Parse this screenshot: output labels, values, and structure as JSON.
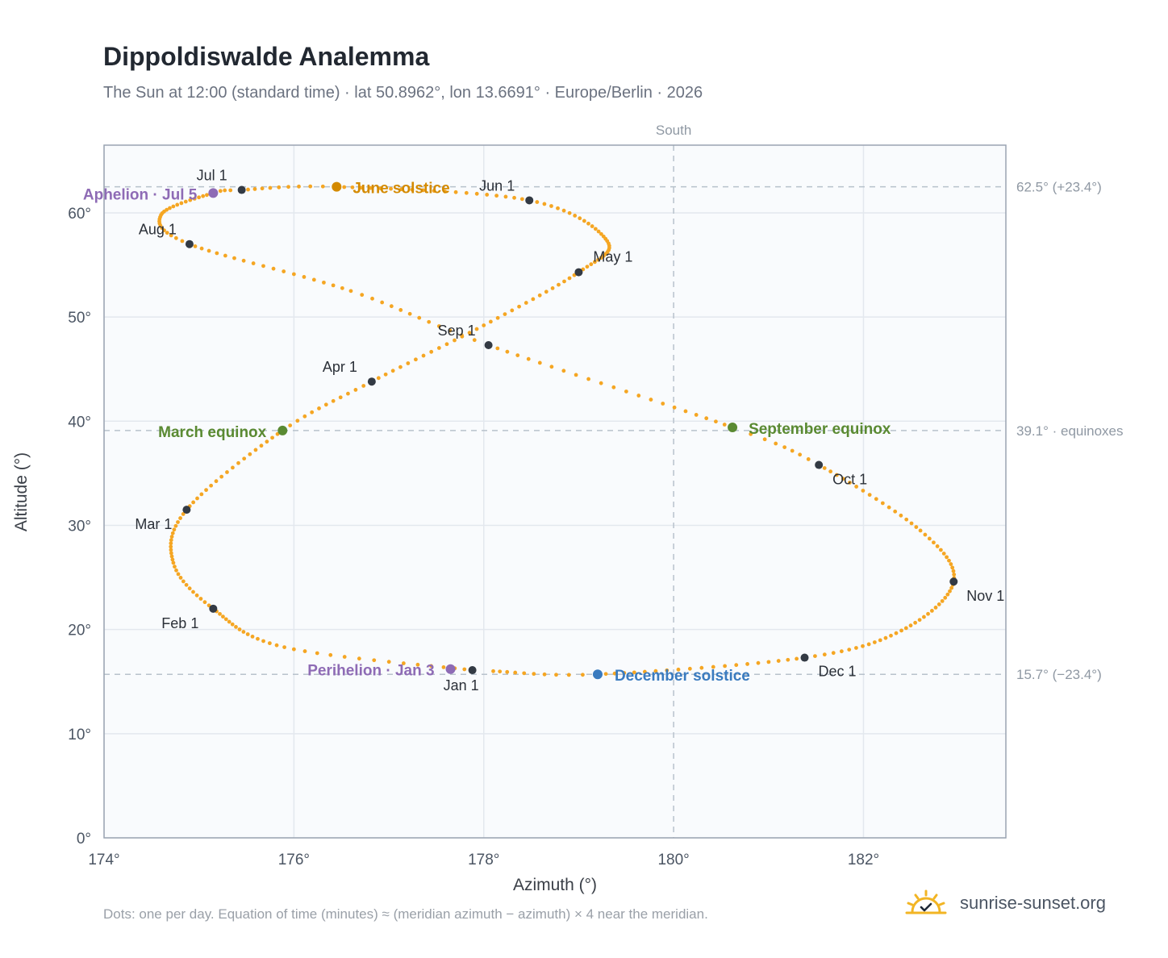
{
  "title": "Dippoldiswalde Analemma",
  "subtitle": "The Sun at 12:00 (standard time) · lat 50.8962°, lon 13.6691° · Europe/Berlin · 2026",
  "footnote": "Dots: one per day. Equation of time (minutes) ≈ (meridian azimuth − azimuth) × 4 near the meridian.",
  "brand": {
    "name": "sunrise-sunset.org",
    "icon": "sun-logo-icon"
  },
  "colors": {
    "curve": "#f5a623",
    "month_marker": "#333a44",
    "equinox": "#5a8a32",
    "june_solstice": "#d48a00",
    "december_solstice": "#3a7bbf",
    "apsis": "#8e6bb5",
    "plot_bg": "#f9fbfd",
    "grid": "#e3e8ee",
    "reference": "#b8c2cc"
  },
  "chart_data": {
    "type": "scatter",
    "title": "Dippoldiswalde Analemma",
    "xlabel": "Azimuth (°)",
    "ylabel": "Altitude (°)",
    "xlim": [
      174,
      183.5
    ],
    "ylim": [
      0,
      66.5
    ],
    "x_ticks": [
      174,
      176,
      178,
      180,
      182
    ],
    "x_tick_labels": [
      "174°",
      "176°",
      "178°",
      "180°",
      "182°"
    ],
    "y_ticks": [
      0,
      10,
      20,
      30,
      40,
      50,
      60
    ],
    "y_tick_labels": [
      "0°",
      "10°",
      "20°",
      "30°",
      "40°",
      "50°",
      "60°"
    ],
    "grid": true,
    "meridian": {
      "azimuth": 180,
      "label": "South"
    },
    "reference_lines": [
      {
        "altitude": 62.5,
        "label": "62.5° (+23.4°)"
      },
      {
        "altitude": 39.1,
        "label": "39.1° · equinoxes"
      },
      {
        "altitude": 15.7,
        "label": "15.7° (−23.4°)"
      }
    ],
    "curve_knots": [
      {
        "day": 0,
        "az": 177.88,
        "alt": 16.1
      },
      {
        "day": 15,
        "az": 175.9,
        "alt": 18.3
      },
      {
        "day": 31,
        "az": 175.15,
        "alt": 22.0
      },
      {
        "day": 44,
        "az": 174.73,
        "alt": 26.4
      },
      {
        "day": 59,
        "az": 174.87,
        "alt": 31.5
      },
      {
        "day": 78,
        "az": 175.88,
        "alt": 39.1
      },
      {
        "day": 90,
        "az": 176.82,
        "alt": 43.8
      },
      {
        "day": 105,
        "az": 178.0,
        "alt": 49.2
      },
      {
        "day": 120,
        "az": 179.0,
        "alt": 54.3
      },
      {
        "day": 134,
        "az": 179.3,
        "alt": 57.3
      },
      {
        "day": 151,
        "az": 178.48,
        "alt": 61.2
      },
      {
        "day": 171,
        "az": 176.45,
        "alt": 62.5
      },
      {
        "day": 181,
        "az": 175.45,
        "alt": 62.2
      },
      {
        "day": 185,
        "az": 175.15,
        "alt": 61.9
      },
      {
        "day": 200,
        "az": 174.6,
        "alt": 59.8
      },
      {
        "day": 212,
        "az": 174.9,
        "alt": 57.0
      },
      {
        "day": 230,
        "az": 176.6,
        "alt": 52.5
      },
      {
        "day": 243,
        "az": 178.05,
        "alt": 47.3
      },
      {
        "day": 265,
        "az": 180.62,
        "alt": 39.4
      },
      {
        "day": 273,
        "az": 181.53,
        "alt": 35.8
      },
      {
        "day": 290,
        "az": 182.6,
        "alt": 29.5
      },
      {
        "day": 304,
        "az": 182.95,
        "alt": 24.6
      },
      {
        "day": 320,
        "az": 182.4,
        "alt": 19.9
      },
      {
        "day": 334,
        "az": 181.38,
        "alt": 17.3
      },
      {
        "day": 354,
        "az": 179.2,
        "alt": 15.7
      },
      {
        "day": 364,
        "az": 178.1,
        "alt": 16.0
      }
    ],
    "month_markers": [
      {
        "label": "Jan 1",
        "az": 177.88,
        "alt": 16.1,
        "anchor": "middle",
        "dx": -14,
        "dy": 25
      },
      {
        "label": "Feb 1",
        "az": 175.15,
        "alt": 22.0,
        "anchor": "end",
        "dx": -18,
        "dy": 24
      },
      {
        "label": "Mar 1",
        "az": 174.87,
        "alt": 31.5,
        "anchor": "end",
        "dx": -18,
        "dy": 24
      },
      {
        "label": "Apr 1",
        "az": 176.82,
        "alt": 43.8,
        "anchor": "end",
        "dx": -18,
        "dy": -12
      },
      {
        "label": "May 1",
        "az": 179.0,
        "alt": 54.3,
        "anchor": "start",
        "dx": 18,
        "dy": -13
      },
      {
        "label": "Jun 1",
        "az": 178.48,
        "alt": 61.2,
        "anchor": "end",
        "dx": -18,
        "dy": -12
      },
      {
        "label": "Jul 1",
        "az": 175.45,
        "alt": 62.2,
        "anchor": "end",
        "dx": -18,
        "dy": -12
      },
      {
        "label": "Aug 1",
        "az": 174.9,
        "alt": 57.0,
        "anchor": "end",
        "dx": -16,
        "dy": -12
      },
      {
        "label": "Sep 1",
        "az": 178.05,
        "alt": 47.3,
        "anchor": "end",
        "dx": -16,
        "dy": -12
      },
      {
        "label": "Oct 1",
        "az": 181.53,
        "alt": 35.8,
        "anchor": "start",
        "dx": 17,
        "dy": 24
      },
      {
        "label": "Nov 1",
        "az": 182.95,
        "alt": 24.6,
        "anchor": "start",
        "dx": 16,
        "dy": 24
      },
      {
        "label": "Dec 1",
        "az": 181.38,
        "alt": 17.3,
        "anchor": "start",
        "dx": 17,
        "dy": 23
      }
    ],
    "events": [
      {
        "label": "June solstice",
        "az": 176.45,
        "alt": 62.5,
        "color_key": "june_solstice",
        "anchor": "start",
        "dx": 20,
        "dy": 8
      },
      {
        "label": "December solstice",
        "az": 179.2,
        "alt": 15.7,
        "color_key": "december_solstice",
        "anchor": "start",
        "dx": 21,
        "dy": 8
      },
      {
        "label": "March equinox",
        "az": 175.88,
        "alt": 39.1,
        "color_key": "equinox",
        "anchor": "end",
        "dx": -20,
        "dy": 8
      },
      {
        "label": "September equinox",
        "az": 180.62,
        "alt": 39.4,
        "color_key": "equinox",
        "anchor": "start",
        "dx": 20,
        "dy": 8
      },
      {
        "label": "Aphelion · Jul 5",
        "az": 175.15,
        "alt": 61.9,
        "color_key": "apsis",
        "anchor": "end",
        "dx": -20,
        "dy": 8
      },
      {
        "label": "Perihelion · Jan 3",
        "az": 177.65,
        "alt": 16.2,
        "color_key": "apsis",
        "anchor": "end",
        "dx": -20,
        "dy": 8
      }
    ]
  }
}
